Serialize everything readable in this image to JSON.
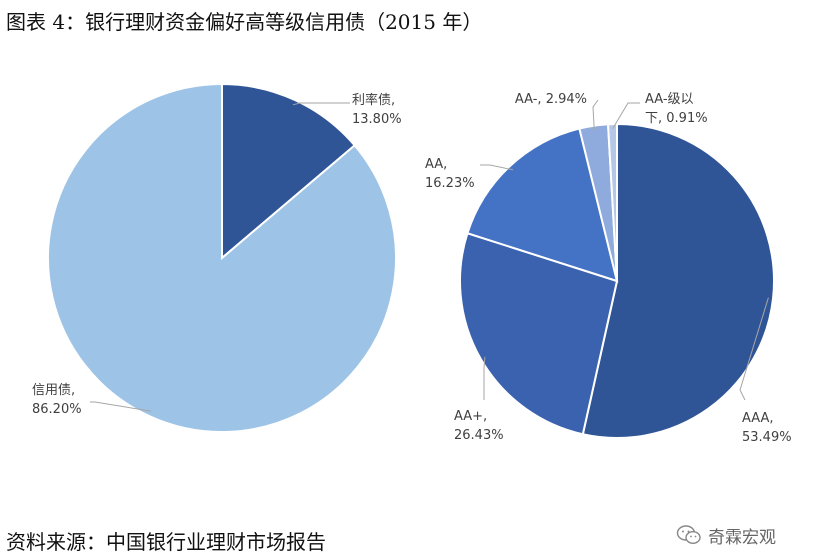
{
  "figure": {
    "title": "图表 4：银行理财资金偏好高等级信用债（2015 年）",
    "source": "资料来源：中国银行业理财市场报告",
    "watermark": "奇霖宏观"
  },
  "chart_data": [
    {
      "type": "pie",
      "title": "",
      "start": "12-o'clock",
      "direction": "clockwise",
      "slices": [
        {
          "label": "利率债",
          "value": 13.8,
          "pct_text": "13.80%",
          "color": "#2F5597"
        },
        {
          "label": "信用债",
          "value": 86.2,
          "pct_text": "86.20%",
          "color": "#9DC3E6"
        }
      ]
    },
    {
      "type": "pie",
      "title": "",
      "start": "12-o'clock",
      "direction": "clockwise",
      "slices": [
        {
          "label": "AAA",
          "value": 53.49,
          "pct_text": "53.49%",
          "color": "#2F5597"
        },
        {
          "label": "AA+",
          "value": 26.43,
          "pct_text": "26.43%",
          "color": "#3A62AE"
        },
        {
          "label": "AA",
          "value": 16.23,
          "pct_text": "16.23%",
          "color": "#4472C4"
        },
        {
          "label": "AA-",
          "value": 2.94,
          "pct_text": "2.94%",
          "color": "#8FAADC"
        },
        {
          "label": "AA-级以下",
          "value": 0.91,
          "pct_text": "0.91%",
          "color": "#B4C7E7"
        }
      ]
    }
  ]
}
